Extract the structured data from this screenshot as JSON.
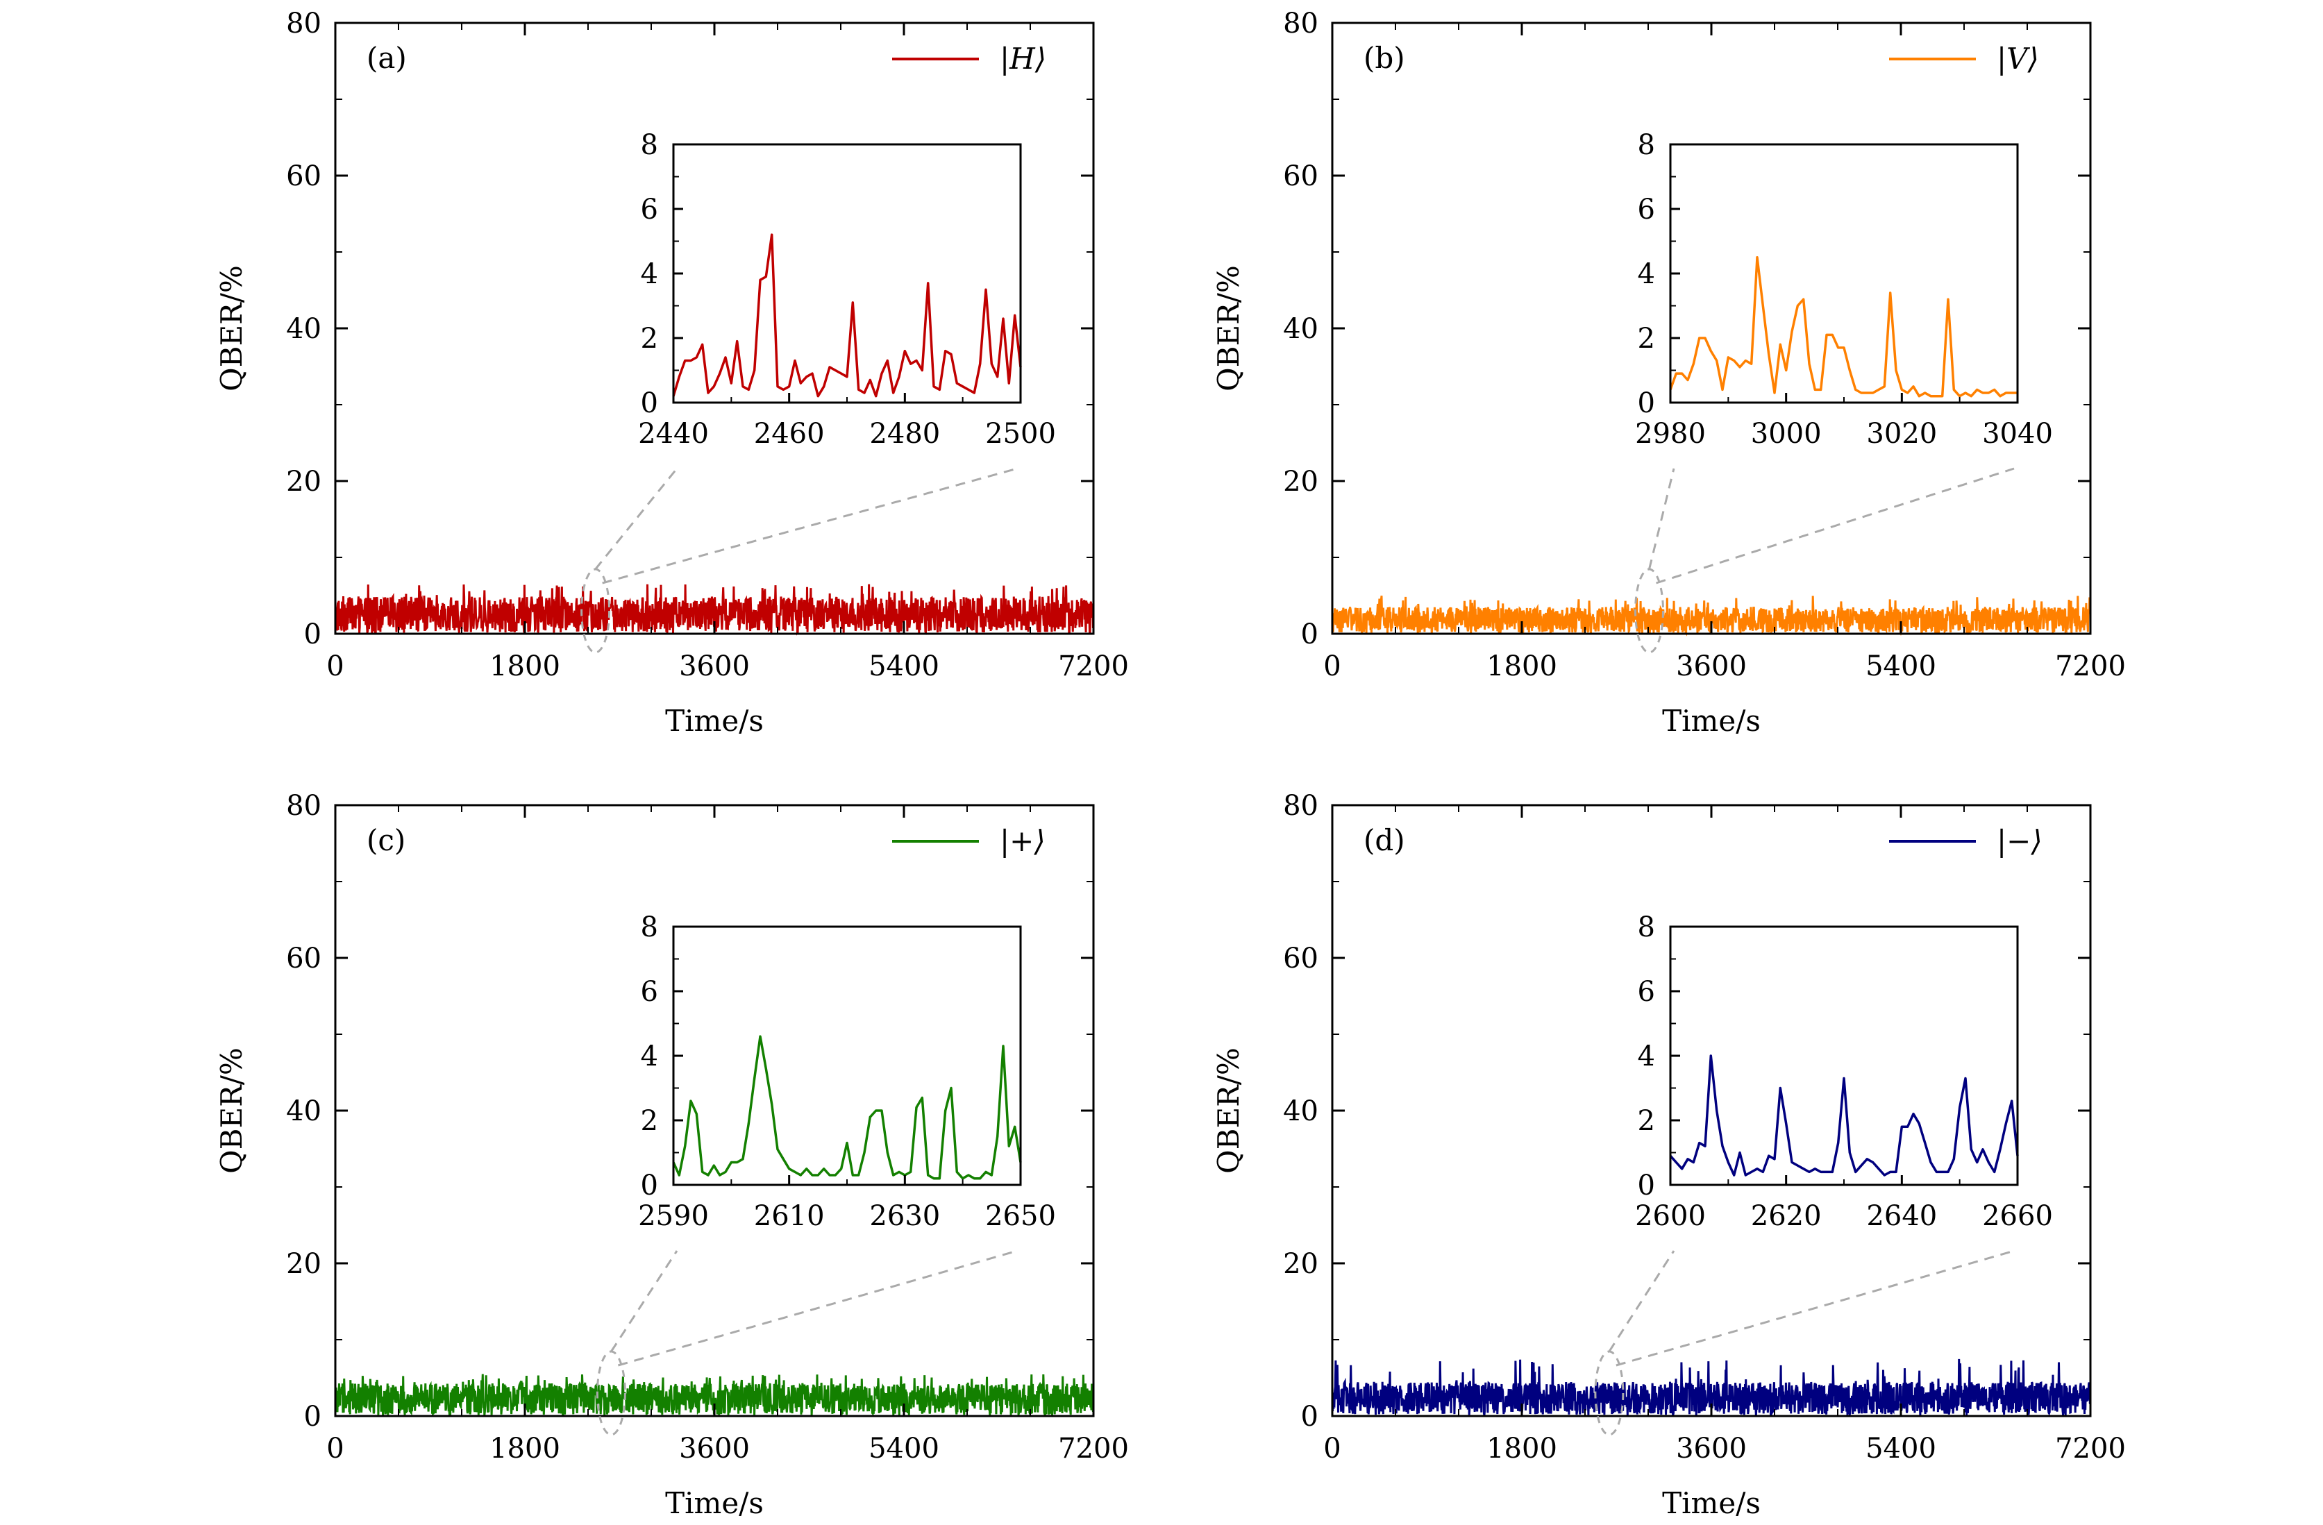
{
  "figure": {
    "xlabel": "Time/s",
    "ylabel": "QBER/%"
  },
  "chart_data": [
    {
      "type": "line",
      "panel": "(a)",
      "color": "#c00000",
      "series": [
        {
          "name": "|H⟩",
          "mean": 2.5,
          "max": 6.5,
          "min": 0.0
        }
      ],
      "x_range": [
        0,
        7200
      ],
      "xticks": [
        "0",
        "1800",
        "3600",
        "5400",
        "7200"
      ],
      "ylim": [
        0,
        80
      ],
      "yticks": [
        "0",
        "20",
        "40",
        "60",
        "80"
      ],
      "xlabel": "Time/s",
      "ylabel": "QBER/%",
      "legend_position": "top-right",
      "zoom_marker_time": 2470,
      "inset": {
        "xlim": [
          2440,
          2500
        ],
        "ylim": [
          0,
          8
        ],
        "xticks": [
          "2440",
          "2460",
          "2480",
          "2500"
        ],
        "yticks": [
          "0",
          "2",
          "4",
          "6",
          "8"
        ],
        "x": [
          2440,
          2441,
          2442,
          2443,
          2444,
          2445,
          2446,
          2447,
          2448,
          2449,
          2450,
          2451,
          2452,
          2453,
          2454,
          2455,
          2456,
          2457,
          2458,
          2459,
          2460,
          2461,
          2462,
          2463,
          2464,
          2465,
          2466,
          2467,
          2468,
          2469,
          2470,
          2471,
          2472,
          2473,
          2474,
          2475,
          2476,
          2477,
          2478,
          2479,
          2480,
          2481,
          2482,
          2483,
          2484,
          2485,
          2486,
          2487,
          2488,
          2489,
          2490,
          2491,
          2492,
          2493,
          2494,
          2495,
          2496,
          2497,
          2498,
          2499,
          2500
        ],
        "y": [
          0.2,
          0.8,
          1.3,
          1.3,
          1.4,
          1.8,
          0.3,
          0.5,
          0.9,
          1.4,
          0.6,
          1.9,
          0.5,
          0.4,
          1.0,
          3.8,
          3.9,
          5.2,
          0.5,
          0.4,
          0.5,
          1.3,
          0.6,
          0.8,
          0.9,
          0.2,
          0.5,
          1.1,
          1.0,
          0.9,
          0.8,
          3.1,
          0.4,
          0.3,
          0.7,
          0.2,
          0.9,
          1.3,
          0.3,
          0.8,
          1.6,
          1.2,
          1.3,
          1.0,
          3.7,
          0.5,
          0.4,
          1.6,
          1.5,
          0.6,
          0.5,
          0.4,
          0.3,
          1.2,
          3.5,
          1.2,
          0.8,
          2.6,
          0.6,
          2.7,
          1.1
        ]
      }
    },
    {
      "type": "line",
      "panel": "(b)",
      "color": "#ff8000",
      "series": [
        {
          "name": "|V⟩",
          "mean": 1.8,
          "max": 5.0,
          "min": 0.0
        }
      ],
      "x_range": [
        0,
        7200
      ],
      "xticks": [
        "0",
        "1800",
        "3600",
        "5400",
        "7200"
      ],
      "ylim": [
        0,
        80
      ],
      "yticks": [
        "0",
        "20",
        "40",
        "60",
        "80"
      ],
      "xlabel": "Time/s",
      "ylabel": "QBER/%",
      "legend_position": "top-right",
      "zoom_marker_time": 3010,
      "inset": {
        "xlim": [
          2980,
          3040
        ],
        "ylim": [
          0,
          8
        ],
        "xticks": [
          "2980",
          "3000",
          "3020",
          "3040"
        ],
        "yticks": [
          "0",
          "2",
          "4",
          "6",
          "8"
        ],
        "x": [
          2980,
          2981,
          2982,
          2983,
          2984,
          2985,
          2986,
          2987,
          2988,
          2989,
          2990,
          2991,
          2992,
          2993,
          2994,
          2995,
          2996,
          2997,
          2998,
          2999,
          3000,
          3001,
          3002,
          3003,
          3004,
          3005,
          3006,
          3007,
          3008,
          3009,
          3010,
          3011,
          3012,
          3013,
          3014,
          3015,
          3016,
          3017,
          3018,
          3019,
          3020,
          3021,
          3022,
          3023,
          3024,
          3025,
          3026,
          3027,
          3028,
          3029,
          3030,
          3031,
          3032,
          3033,
          3034,
          3035,
          3036,
          3037,
          3038,
          3039,
          3040
        ],
        "y": [
          0.4,
          0.9,
          0.9,
          0.7,
          1.2,
          2.0,
          2.0,
          1.6,
          1.3,
          0.4,
          1.4,
          1.3,
          1.1,
          1.3,
          1.2,
          4.5,
          3.0,
          1.5,
          0.3,
          1.8,
          1.0,
          2.2,
          3.0,
          3.2,
          1.2,
          0.4,
          0.4,
          2.1,
          2.1,
          1.7,
          1.7,
          1.0,
          0.4,
          0.3,
          0.3,
          0.3,
          0.4,
          0.5,
          3.4,
          1.0,
          0.4,
          0.3,
          0.5,
          0.2,
          0.3,
          0.2,
          0.2,
          0.2,
          3.2,
          0.4,
          0.2,
          0.3,
          0.2,
          0.4,
          0.3,
          0.3,
          0.4,
          0.2,
          0.3,
          0.3,
          0.3
        ]
      }
    },
    {
      "type": "line",
      "panel": "(c)",
      "color": "#138000",
      "series": [
        {
          "name": "|+⟩",
          "mean": 2.2,
          "max": 5.5,
          "min": 0.0
        }
      ],
      "x_range": [
        0,
        7200
      ],
      "xticks": [
        "0",
        "1800",
        "3600",
        "5400",
        "7200"
      ],
      "ylim": [
        0,
        80
      ],
      "yticks": [
        "0",
        "20",
        "40",
        "60",
        "80"
      ],
      "xlabel": "Time/s",
      "ylabel": "QBER/%",
      "legend_position": "top-right",
      "zoom_marker_time": 2620,
      "inset": {
        "xlim": [
          2590,
          2650
        ],
        "ylim": [
          0,
          8
        ],
        "xticks": [
          "2590",
          "2610",
          "2630",
          "2650"
        ],
        "yticks": [
          "0",
          "2",
          "4",
          "6",
          "8"
        ],
        "x": [
          2590,
          2591,
          2592,
          2593,
          2594,
          2595,
          2596,
          2597,
          2598,
          2599,
          2600,
          2601,
          2602,
          2603,
          2604,
          2605,
          2606,
          2607,
          2608,
          2609,
          2610,
          2611,
          2612,
          2613,
          2614,
          2615,
          2616,
          2617,
          2618,
          2619,
          2620,
          2621,
          2622,
          2623,
          2624,
          2625,
          2626,
          2627,
          2628,
          2629,
          2630,
          2631,
          2632,
          2633,
          2634,
          2635,
          2636,
          2637,
          2638,
          2639,
          2640,
          2641,
          2642,
          2643,
          2644,
          2645,
          2646,
          2647,
          2648,
          2649,
          2650
        ],
        "y": [
          0.7,
          0.3,
          1.2,
          2.6,
          2.2,
          0.4,
          0.3,
          0.6,
          0.3,
          0.4,
          0.7,
          0.7,
          0.8,
          1.9,
          3.3,
          4.6,
          3.6,
          2.5,
          1.1,
          0.8,
          0.5,
          0.4,
          0.3,
          0.5,
          0.3,
          0.3,
          0.5,
          0.3,
          0.3,
          0.5,
          1.3,
          0.3,
          0.3,
          1.0,
          2.1,
          2.3,
          2.3,
          1.0,
          0.3,
          0.4,
          0.3,
          0.4,
          2.4,
          2.7,
          0.3,
          0.2,
          0.2,
          2.3,
          3.0,
          0.4,
          0.2,
          0.3,
          0.2,
          0.2,
          0.4,
          0.3,
          1.5,
          4.3,
          1.2,
          1.8,
          0.7
        ]
      }
    },
    {
      "type": "line",
      "panel": "(d)",
      "color": "#00007f",
      "series": [
        {
          "name": "|−⟩",
          "mean": 2.3,
          "max": 7.5,
          "min": 0.0
        }
      ],
      "x_range": [
        0,
        7200
      ],
      "xticks": [
        "0",
        "1800",
        "3600",
        "5400",
        "7200"
      ],
      "ylim": [
        0,
        80
      ],
      "yticks": [
        "0",
        "20",
        "40",
        "60",
        "80"
      ],
      "xlabel": "Time/s",
      "ylabel": "QBER/%",
      "legend_position": "top-right",
      "zoom_marker_time": 2630,
      "inset": {
        "xlim": [
          2600,
          2660
        ],
        "ylim": [
          0,
          8
        ],
        "xticks": [
          "2600",
          "2620",
          "2640",
          "2660"
        ],
        "yticks": [
          "0",
          "2",
          "4",
          "6",
          "8"
        ],
        "x": [
          2600,
          2601,
          2602,
          2603,
          2604,
          2605,
          2606,
          2607,
          2608,
          2609,
          2610,
          2611,
          2612,
          2613,
          2614,
          2615,
          2616,
          2617,
          2618,
          2619,
          2620,
          2621,
          2622,
          2623,
          2624,
          2625,
          2626,
          2627,
          2628,
          2629,
          2630,
          2631,
          2632,
          2633,
          2634,
          2635,
          2636,
          2637,
          2638,
          2639,
          2640,
          2641,
          2642,
          2643,
          2644,
          2645,
          2646,
          2647,
          2648,
          2649,
          2650,
          2651,
          2652,
          2653,
          2654,
          2655,
          2656,
          2657,
          2658,
          2659,
          2660
        ],
        "y": [
          0.9,
          0.7,
          0.5,
          0.8,
          0.7,
          1.3,
          1.2,
          4.0,
          2.3,
          1.2,
          0.7,
          0.3,
          1.0,
          0.3,
          0.4,
          0.5,
          0.4,
          0.9,
          0.8,
          3.0,
          1.9,
          0.7,
          0.6,
          0.5,
          0.4,
          0.5,
          0.4,
          0.4,
          0.4,
          1.3,
          3.3,
          1.0,
          0.4,
          0.6,
          0.8,
          0.7,
          0.5,
          0.3,
          0.4,
          0.4,
          1.8,
          1.8,
          2.2,
          1.9,
          1.3,
          0.7,
          0.4,
          0.4,
          0.4,
          0.8,
          2.4,
          3.3,
          1.1,
          0.7,
          1.1,
          0.7,
          0.4,
          1.1,
          1.9,
          2.6,
          0.9
        ]
      }
    }
  ]
}
